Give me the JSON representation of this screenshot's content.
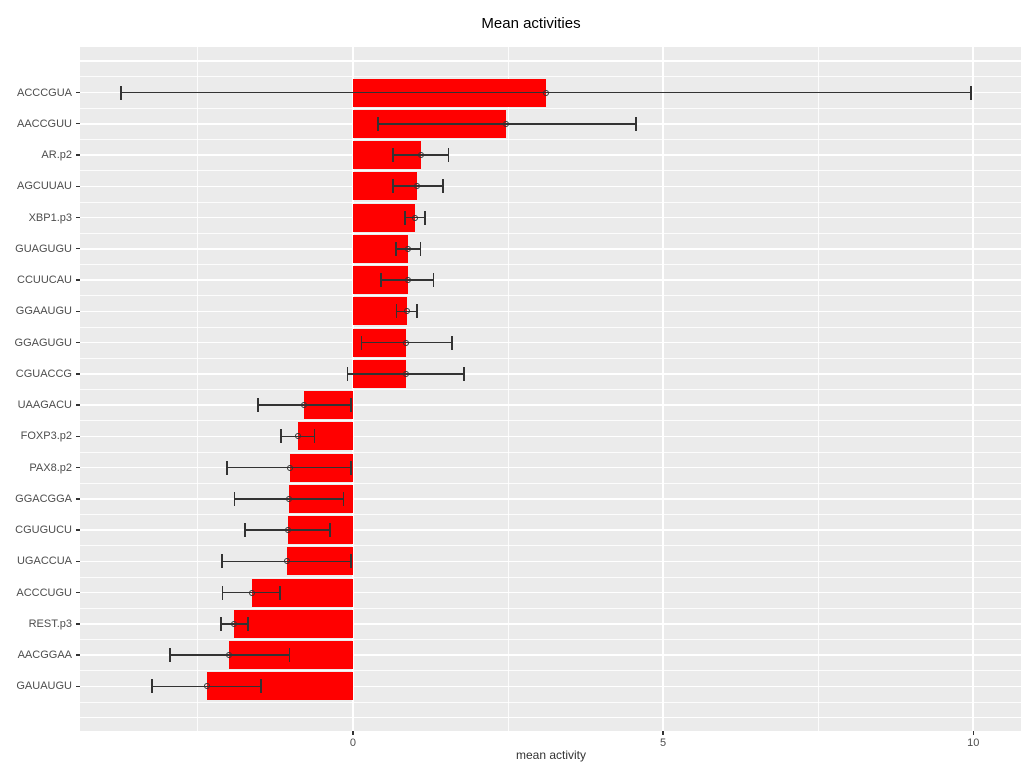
{
  "chart_data": {
    "type": "bar",
    "orientation": "horizontal",
    "title": "Mean activities",
    "xlabel": "mean activity",
    "ylabel": "",
    "xlim": [
      -4.4,
      10.77
    ],
    "x_ticks": [
      0,
      5,
      10
    ],
    "x_tick_labels": [
      "0",
      "5",
      "10"
    ],
    "x_minor_ticks": [
      -2.5,
      2.5,
      7.5
    ],
    "grid": true,
    "legend_position": "none",
    "panel_background": "#EBEBEB",
    "grid_color": "#FFFFFF",
    "bar_color": "#FF0000",
    "errorbar_color": "#333333",
    "categories": [
      "ACCCGUA",
      "AACCGUU",
      "AR.p2",
      "AGCUUAU",
      "XBP1.p3",
      "GUAGUGU",
      "CCUUCAU",
      "GGAAUGU",
      "GGAGUGU",
      "CGUACCG",
      "UAAGACU",
      "FOXP3.p2",
      "PAX8.p2",
      "GGACGGA",
      "CGUGUCU",
      "UGACCUA",
      "ACCCUGU",
      "REST.p3",
      "AACGGAA",
      "GAUAUGU"
    ],
    "values": [
      3.11,
      2.47,
      1.1,
      1.04,
      1.0,
      0.89,
      0.88,
      0.87,
      0.86,
      0.85,
      -0.79,
      -0.89,
      -1.02,
      -1.03,
      -1.05,
      -1.07,
      -1.63,
      -1.91,
      -2.0,
      -2.36
    ],
    "error_low": [
      -3.74,
      0.4,
      0.65,
      0.65,
      0.84,
      0.69,
      0.45,
      0.7,
      0.14,
      -0.09,
      -1.53,
      -1.16,
      -2.03,
      -1.91,
      -1.74,
      -2.11,
      -2.1,
      -2.13,
      -2.95,
      -3.24
    ],
    "error_high": [
      9.96,
      4.56,
      1.54,
      1.45,
      1.16,
      1.09,
      1.3,
      1.03,
      1.6,
      1.79,
      -0.03,
      -0.62,
      -0.03,
      -0.15,
      -0.37,
      -0.03,
      -1.18,
      -1.69,
      -1.02,
      -1.48
    ]
  }
}
